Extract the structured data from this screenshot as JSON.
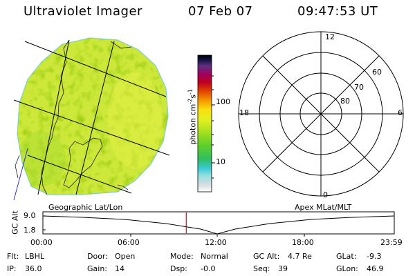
{
  "header": {
    "title": "Ultraviolet Imager",
    "date": "07 Feb 07",
    "time": "09:47:53 UT"
  },
  "colorbar": {
    "unit_prefix": "photon cm",
    "unit_exp1": "-2",
    "unit_mid": "s",
    "unit_exp2": "-1",
    "tick_100": "100",
    "tick_10": "10"
  },
  "polar": {
    "hour_top": "12",
    "hour_left": "18",
    "hour_right": "6",
    "hour_bottom": "0",
    "lat_60": "60",
    "lat_70": "70",
    "lat_80": "80"
  },
  "panel_labels": {
    "left": "Geographic Lat/Lon",
    "right": "Apex MLat/MLT"
  },
  "altitude_plot": {
    "ylabel": "GC Alt",
    "y_top": "9.0",
    "y_bottom": "1.8",
    "x_ticks": [
      "00:00",
      "06:00",
      "12:00",
      "18:00",
      "23:59"
    ],
    "current_time_fraction": 0.408
  },
  "status": {
    "flt_label": "Flt:",
    "flt": "LBHL",
    "ip_label": "IP:",
    "ip": "36.0",
    "door_label": "Door:",
    "door": "Open",
    "gain_label": "Gain:",
    "gain": "14",
    "mode_label": "Mode:",
    "mode": "Normal",
    "dsp_label": "Dsp:",
    "dsp": "-0.0",
    "gcalt_label": "GC Alt:",
    "gcalt": "4.7 Re",
    "seq_label": "Seq:",
    "seq": "39",
    "glat_label": "GLat:",
    "glat": "-9.3",
    "glon_label": "GLon:",
    "glon": "46.9"
  },
  "colors": {
    "marker": "#e00000",
    "image_base": "#cde83a"
  }
}
